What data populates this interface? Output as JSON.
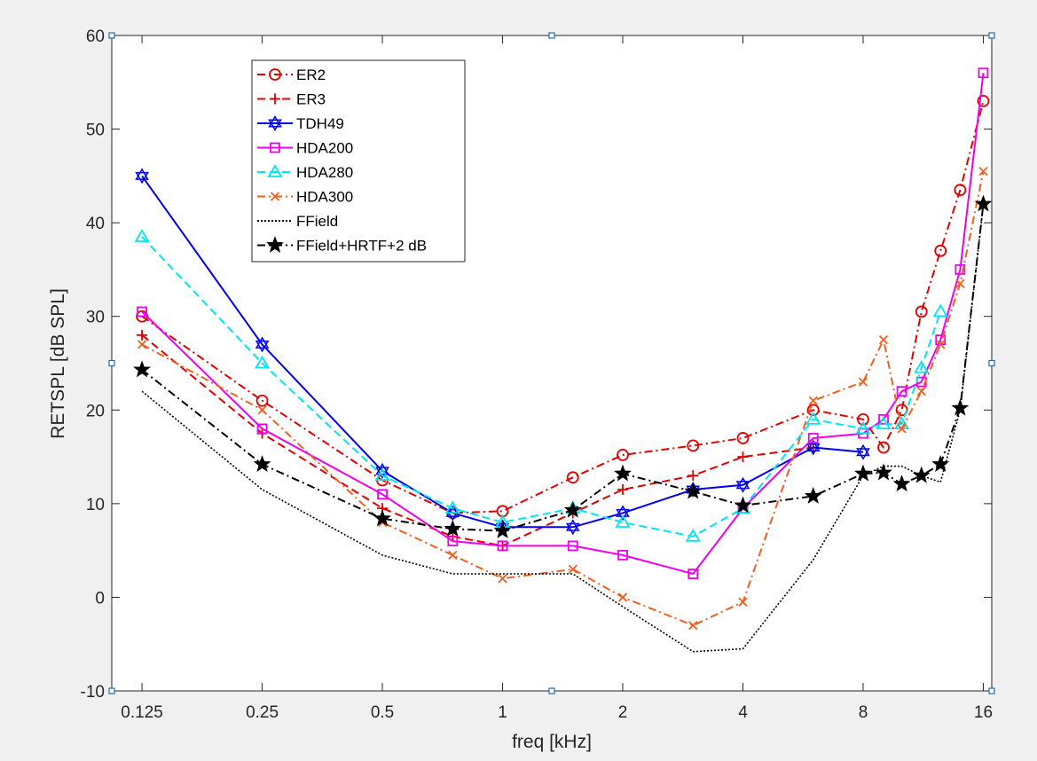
{
  "chart_data": {
    "type": "line",
    "xlabel": "freq [kHz]",
    "ylabel": "RETSPL [dB SPL]",
    "xscale": "log2",
    "xlim": [
      0.105,
      16.8
    ],
    "ylim": [
      -10,
      60
    ],
    "xticks": [
      0.125,
      0.25,
      0.5,
      1,
      2,
      4,
      8,
      16
    ],
    "xtick_labels": [
      "0.125",
      "0.25",
      "0.5",
      "1",
      "2",
      "4",
      "8",
      "16"
    ],
    "yticks": [
      -10,
      0,
      10,
      20,
      30,
      40,
      50,
      60
    ],
    "ytick_labels": [
      "-10",
      "0",
      "10",
      "20",
      "30",
      "40",
      "50",
      "60"
    ],
    "grid": false,
    "legend_position": "top-left",
    "series": [
      {
        "name": "ER2",
        "color": "#e00000",
        "linestyle": "dashdot",
        "marker": "circle",
        "x": [
          0.125,
          0.25,
          0.5,
          0.75,
          1,
          1.5,
          2,
          3,
          4,
          6,
          8,
          9,
          10,
          11.2,
          12.5,
          14,
          16
        ],
        "y": [
          30,
          21,
          12.5,
          9,
          9.2,
          12.8,
          15.2,
          16.2,
          17,
          20,
          19,
          16,
          20,
          30.5,
          37,
          43.5,
          53
        ]
      },
      {
        "name": "ER3",
        "color": "#e00000",
        "linestyle": "dashed",
        "marker": "plus",
        "x": [
          0.125,
          0.25,
          0.5,
          0.75,
          1,
          1.5,
          2,
          3,
          4,
          6
        ],
        "y": [
          28,
          17.5,
          9.5,
          6.5,
          5.5,
          9,
          11.5,
          13,
          15,
          16
        ]
      },
      {
        "name": "TDH49",
        "color": "#0000ee",
        "linestyle": "solid",
        "marker": "hexagram",
        "x": [
          0.125,
          0.25,
          0.5,
          0.75,
          1,
          1.5,
          2,
          3,
          4,
          6,
          8
        ],
        "y": [
          45,
          27,
          13.5,
          9,
          7.5,
          7.5,
          9,
          11.5,
          12,
          16,
          15.5
        ]
      },
      {
        "name": "HDA200",
        "color": "#ee00ee",
        "linestyle": "solid",
        "marker": "square",
        "x": [
          0.125,
          0.25,
          0.5,
          0.75,
          1,
          1.5,
          2,
          3,
          4,
          6,
          8,
          9,
          10,
          11.2,
          12.5,
          14,
          16
        ],
        "y": [
          30.5,
          18,
          11,
          6,
          5.5,
          5.5,
          4.5,
          2.5,
          9.5,
          17,
          17.5,
          19,
          22,
          23,
          27.5,
          35,
          56
        ]
      },
      {
        "name": "HDA280",
        "color": "#00e5ee",
        "linestyle": "dashed",
        "marker": "triangle",
        "x": [
          0.125,
          0.25,
          0.5,
          0.75,
          1,
          1.5,
          2,
          3,
          4,
          6,
          8,
          9,
          10,
          11.2,
          12.5
        ],
        "y": [
          38.5,
          25,
          13,
          9.5,
          8,
          9.5,
          8,
          6.5,
          9.5,
          19,
          18,
          18.5,
          18.5,
          24.5,
          30.5
        ]
      },
      {
        "name": "HDA300",
        "color": "#ee6020",
        "linestyle": "dashdot",
        "marker": "x",
        "x": [
          0.125,
          0.25,
          0.5,
          0.75,
          1,
          1.5,
          2,
          3,
          4,
          6,
          8,
          9,
          10,
          11.2,
          12.5,
          14,
          16
        ],
        "y": [
          27,
          20,
          8,
          4.5,
          2,
          3,
          0,
          -3,
          -0.5,
          21,
          23,
          27.5,
          18,
          22,
          27,
          33.5,
          45.5
        ]
      },
      {
        "name": "FField",
        "color": "#000000",
        "linestyle": "dotted",
        "marker": "none",
        "x": [
          0.125,
          0.25,
          0.5,
          0.75,
          1,
          1.5,
          2,
          3,
          4,
          6,
          8,
          9,
          10,
          11.2,
          12.5,
          14,
          16
        ],
        "y": [
          22,
          11.5,
          4.5,
          2.5,
          2.5,
          2.5,
          -1,
          -5.8,
          -5.5,
          4,
          13,
          14,
          14,
          13,
          12.3,
          20,
          42
        ]
      },
      {
        "name": "FField+HRTF+2 dB",
        "color": "#000000",
        "linestyle": "dashdot",
        "marker": "star",
        "x": [
          0.125,
          0.25,
          0.5,
          0.75,
          1,
          1.5,
          2,
          3,
          4,
          6,
          8,
          9,
          10,
          11.2,
          12.5,
          14,
          16
        ],
        "y": [
          24.3,
          14.2,
          8.4,
          7.3,
          7.1,
          9.3,
          13.2,
          11.3,
          9.8,
          10.8,
          13.2,
          13.3,
          12.1,
          13,
          14.2,
          20.2,
          42
        ]
      }
    ]
  }
}
